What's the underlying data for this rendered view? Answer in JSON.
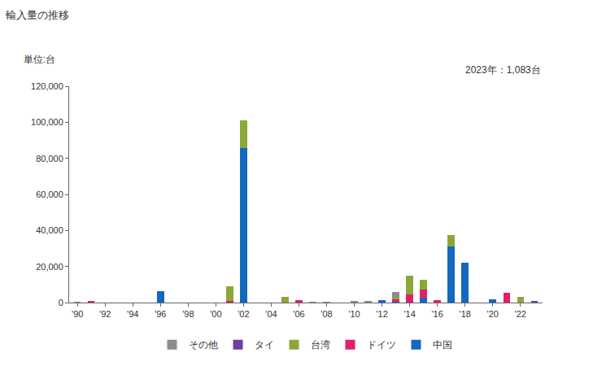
{
  "chart_data": {
    "type": "bar",
    "title": "輸入量の推移",
    "y_label": "単位:台",
    "annotations": [
      "2023年：1,083台"
    ],
    "stacked": true,
    "grid": false,
    "legend": "bottom",
    "categories": [
      "'90",
      null,
      "'92",
      null,
      "'94",
      null,
      "'96",
      null,
      "'98",
      null,
      "'00",
      null,
      "'02",
      null,
      "'04",
      null,
      "'06",
      null,
      "'08",
      null,
      "'10",
      null,
      "'12",
      null,
      "'14",
      null,
      "'16",
      null,
      "'18",
      null,
      "'20",
      null,
      "'22",
      null
    ],
    "ylim": [
      0,
      120000
    ],
    "yticks": [
      0,
      {
        "value": 20000,
        "label": "20,000"
      },
      {
        "value": 40000,
        "label": "40,000"
      },
      {
        "value": 60000,
        "label": "60,000"
      },
      {
        "value": 80000,
        "label": "80,000"
      },
      {
        "value": 100000,
        "label": "100,000"
      },
      {
        "value": 120000,
        "label": "120,000"
      }
    ],
    "series": [
      {
        "name": "中国",
        "color": "#1468c0",
        "values": [
          0,
          0,
          0,
          0,
          0,
          0,
          6500,
          0,
          0,
          0,
          0,
          0,
          85500,
          0,
          0,
          0,
          0,
          0,
          0,
          0,
          0,
          0,
          1200,
          300,
          0,
          2500,
          0,
          31000,
          22000,
          0,
          1800,
          0,
          0,
          0
        ]
      },
      {
        "name": "ドイツ",
        "color": "#e0206a",
        "values": [
          0,
          700,
          0,
          0,
          0,
          0,
          0,
          0,
          0,
          0,
          0,
          800,
          0,
          0,
          0,
          0,
          1500,
          0,
          0,
          0,
          0,
          0,
          0,
          1500,
          4500,
          4500,
          1200,
          0,
          0,
          0,
          0,
          5200,
          0,
          0
        ]
      },
      {
        "name": "台湾",
        "color": "#8aa83a",
        "values": [
          0,
          0,
          0,
          0,
          0,
          0,
          0,
          0,
          0,
          0,
          0,
          8000,
          15500,
          0,
          0,
          3300,
          0,
          0,
          0,
          0,
          0,
          0,
          0,
          1500,
          10500,
          5500,
          0,
          6500,
          0,
          0,
          0,
          0,
          3000,
          0
        ]
      },
      {
        "name": "タイ",
        "color": "#6b3fa0",
        "values": [
          0,
          0,
          0,
          0,
          0,
          0,
          0,
          0,
          0,
          0,
          0,
          0,
          0,
          0,
          0,
          0,
          0,
          0,
          0,
          0,
          0,
          0,
          0,
          0,
          0,
          0,
          0,
          0,
          0,
          0,
          0,
          0,
          0,
          1083
        ]
      },
      {
        "name": "その他",
        "color": "#8c8c8c",
        "values": [
          300,
          0,
          0,
          0,
          0,
          0,
          0,
          0,
          0,
          0,
          0,
          0,
          0,
          0,
          0,
          0,
          0,
          400,
          300,
          0,
          700,
          800,
          0,
          2400,
          0,
          0,
          0,
          0,
          0,
          0,
          0,
          0,
          0,
          0
        ]
      }
    ]
  }
}
